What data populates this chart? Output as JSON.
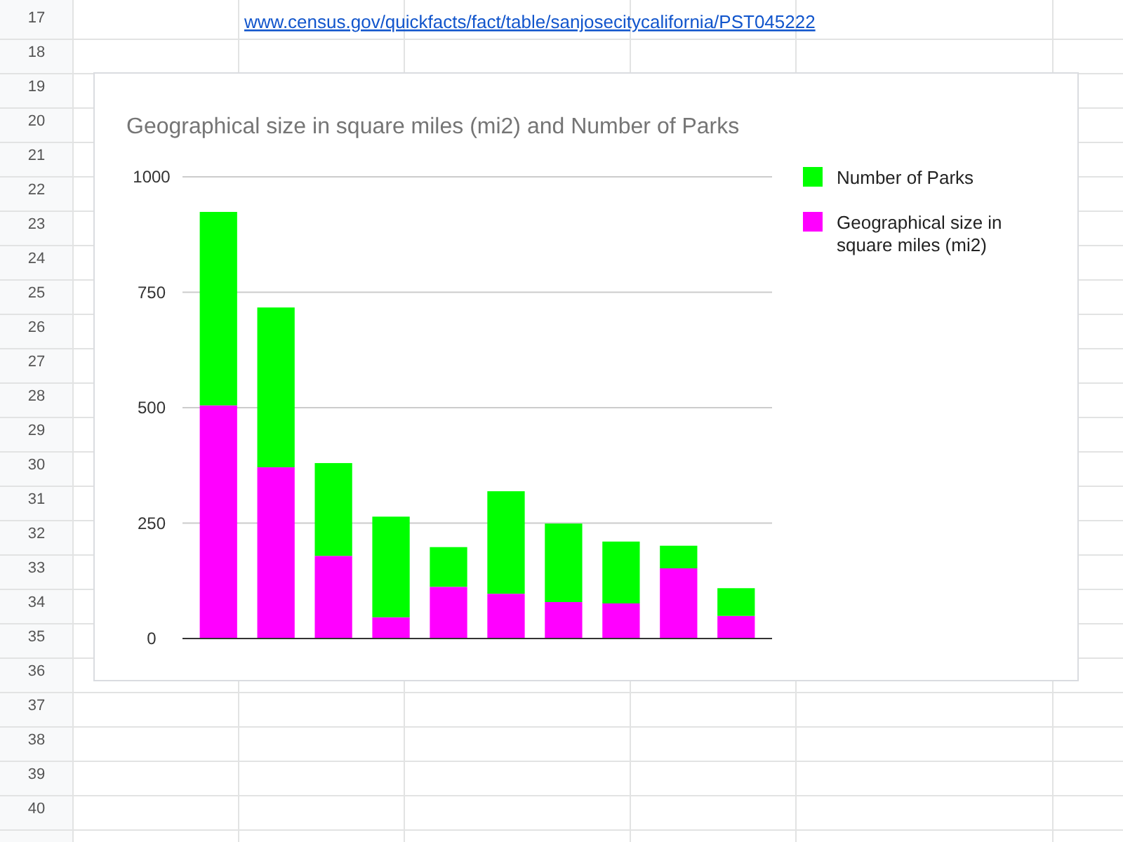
{
  "chart_data": {
    "type": "bar",
    "title": "Geographical size in square miles (mi2) and Number of Parks",
    "categories": [
      null,
      null,
      null,
      null,
      null,
      null,
      null,
      null,
      null,
      null
    ],
    "series": [
      {
        "name": "Geographical size in square miles (mi2)",
        "color": "#ff00ff",
        "values": [
          505,
          371,
          179,
          46,
          112,
          97,
          79,
          76,
          152,
          49
        ]
      },
      {
        "name": "Number of Parks",
        "color": "#00ff00",
        "values": [
          419,
          346,
          201,
          218,
          86,
          222,
          170,
          134,
          49,
          60
        ]
      }
    ],
    "stacked": true,
    "ylim": [
      0,
      1000
    ],
    "yticks": [
      0,
      250,
      500,
      750,
      1000
    ],
    "grid": "y",
    "legend": "top right",
    "annotations": [
      "www.census.gov/quickfacts/fact/table/sanjosecitycalifornia/PST045222",
      "17",
      "18",
      "19",
      "20",
      "21",
      "22",
      "23",
      "24",
      "25",
      "26",
      "27",
      "28",
      "29",
      "30",
      "31",
      "32",
      "33",
      "34",
      "35",
      "36",
      "37",
      "38",
      "39",
      "40"
    ]
  }
}
